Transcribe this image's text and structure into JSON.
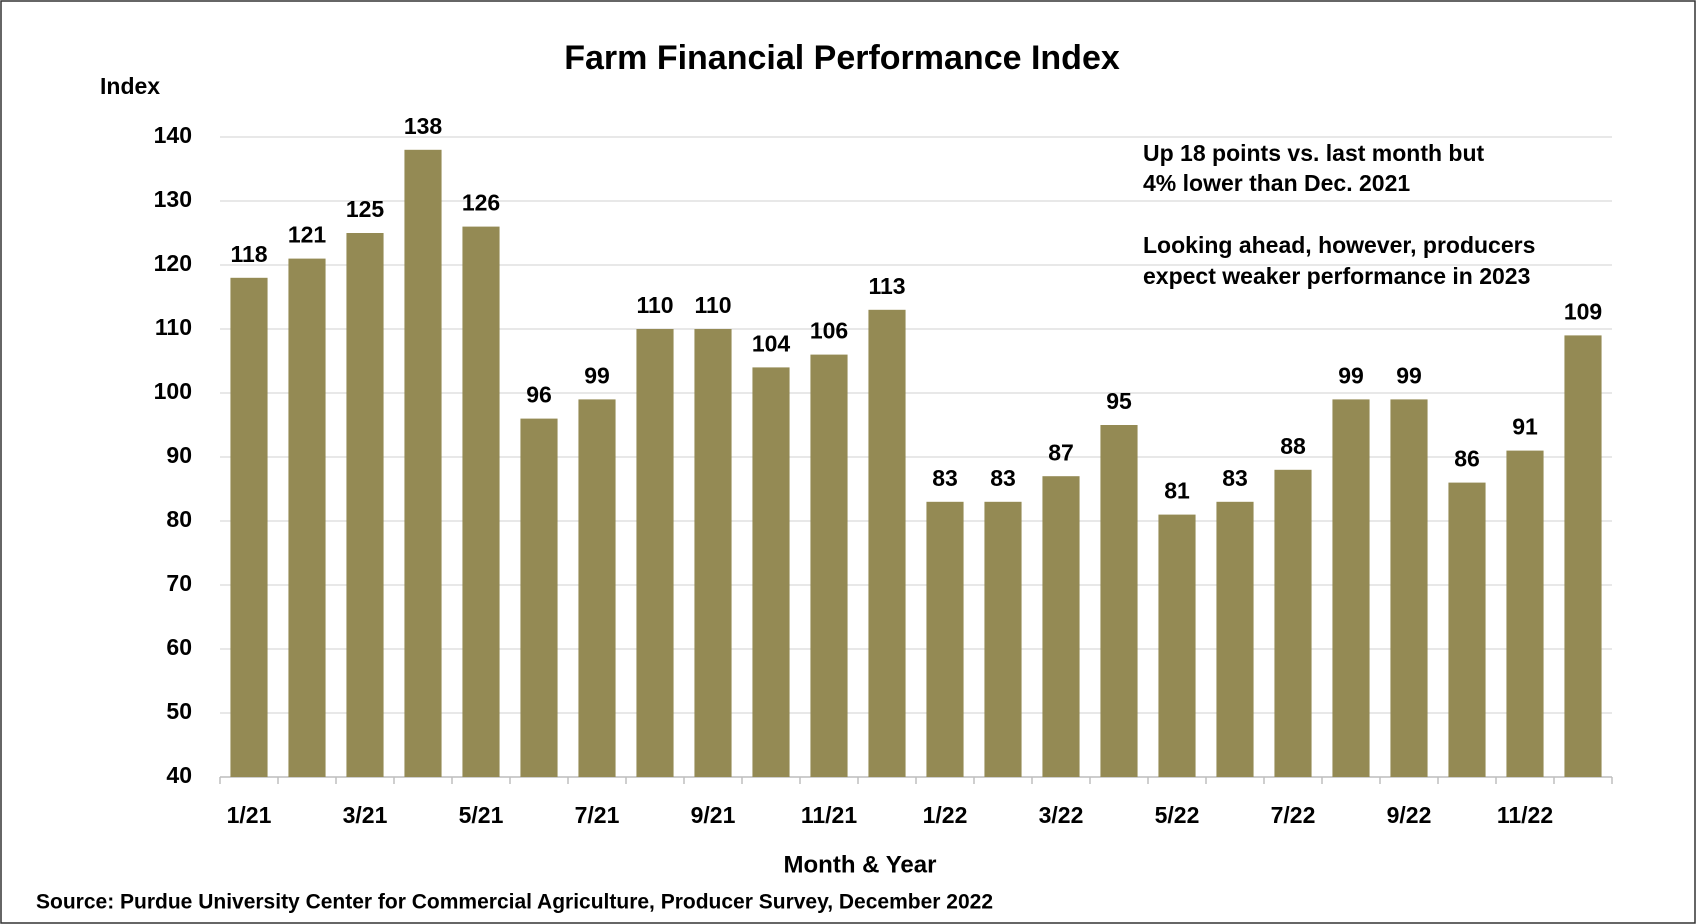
{
  "chart_data": {
    "type": "bar",
    "title": "Farm Financial Performance Index",
    "y_axis_label": "Index",
    "x_axis_label": "Month & Year",
    "source": "Source: Purdue University Center for Commercial Agriculture, Producer Survey, December 2022",
    "annotations": [
      "Up 18 points vs. last month but",
      "4% lower than Dec. 2021",
      "Looking ahead, however, producers",
      "expect weaker performance in 2023"
    ],
    "categories": [
      "1/21",
      null,
      "3/21",
      null,
      "5/21",
      null,
      "7/21",
      null,
      "9/21",
      null,
      "11/21",
      null,
      "1/22",
      null,
      "3/22",
      null,
      "5/22",
      null,
      "7/22",
      null,
      "9/22",
      null,
      "11/22",
      null
    ],
    "values": [
      118,
      121,
      125,
      138,
      126,
      96,
      99,
      110,
      110,
      104,
      106,
      113,
      83,
      83,
      87,
      95,
      81,
      83,
      88,
      99,
      99,
      86,
      91,
      109
    ],
    "color": "#948a54",
    "ylim": [
      40,
      140
    ],
    "yticks": [
      40,
      50,
      60,
      70,
      80,
      90,
      100,
      110,
      120,
      130,
      140
    ],
    "grid": true
  }
}
